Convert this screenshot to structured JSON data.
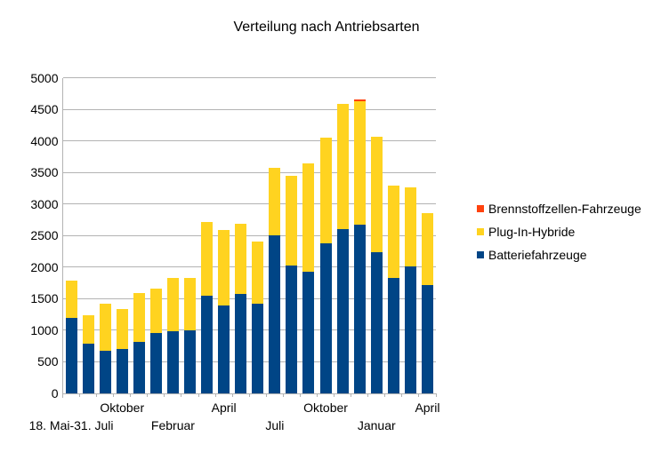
{
  "title": "Verteilung nach Antriebsarten",
  "chart_data": {
    "type": "bar",
    "stacked": true,
    "title": "Verteilung nach Antriebsarten",
    "background_color": "#ffffff",
    "grid": "horizontal",
    "gridline_color": "#b3b3b3",
    "ylim": [
      0,
      5000
    ],
    "ytick_step": 500,
    "y_tick_labels": [
      "0",
      "500",
      "1000",
      "1500",
      "2000",
      "2500",
      "3000",
      "3500",
      "4000",
      "4500",
      "5000"
    ],
    "categories_count": 22,
    "x_tick_labels": [
      {
        "index": 0,
        "label": "18. Mai-31. Juli",
        "row": "lower"
      },
      {
        "index": 3,
        "label": "Oktober",
        "row": "upper"
      },
      {
        "index": 6,
        "label": "Februar",
        "row": "lower"
      },
      {
        "index": 9,
        "label": "April",
        "row": "upper"
      },
      {
        "index": 12,
        "label": "Juli",
        "row": "lower"
      },
      {
        "index": 15,
        "label": "Oktober",
        "row": "upper"
      },
      {
        "index": 18,
        "label": "Januar",
        "row": "lower"
      },
      {
        "index": 21,
        "label": "April",
        "row": "upper"
      }
    ],
    "series": [
      {
        "name": "Batteriefahrzeuge",
        "color": "#004586",
        "values": [
          1190,
          790,
          670,
          700,
          820,
          950,
          990,
          1000,
          1550,
          1390,
          1580,
          1420,
          2500,
          2030,
          1930,
          2370,
          2600,
          2670,
          2230,
          1830,
          2010,
          1720
        ]
      },
      {
        "name": "Plug-In-Hybride",
        "color": "#FFD320",
        "values": [
          600,
          450,
          750,
          640,
          770,
          710,
          840,
          830,
          1160,
          1200,
          1110,
          980,
          1070,
          1420,
          1710,
          1680,
          1980,
          1960,
          1840,
          1460,
          1260,
          1140
        ]
      },
      {
        "name": "Brennstoffzellen-Fahrzeuge",
        "color": "#FF420E",
        "values": [
          0,
          0,
          0,
          0,
          0,
          0,
          0,
          0,
          0,
          0,
          0,
          0,
          0,
          0,
          0,
          0,
          0,
          30,
          0,
          0,
          0,
          0
        ]
      }
    ],
    "legend": {
      "position": "right",
      "items_top_to_bottom": [
        "Brennstoffzellen-Fahrzeuge",
        "Plug-In-Hybride",
        "Batteriefahrzeuge"
      ]
    }
  }
}
